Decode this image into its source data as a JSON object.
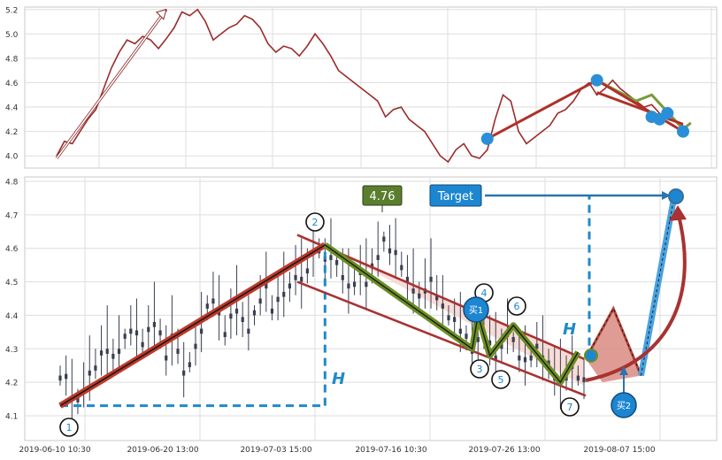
{
  "chart_data": [
    {
      "type": "line",
      "panel": "overview",
      "title": "",
      "xlabel": "",
      "ylabel": "",
      "ylim": [
        3.9,
        5.22
      ],
      "y_ticks": [
        "4.0",
        "4.2",
        "4.4",
        "4.6",
        "4.8",
        "5.0",
        "5.2"
      ],
      "grid": true,
      "line_color": "#9b2c2c",
      "series": [
        {
          "values": [
            4.0,
            4.12,
            4.1,
            4.2,
            4.3,
            4.38,
            4.55,
            4.72,
            4.85,
            4.95,
            4.92,
            4.98,
            4.95,
            4.88,
            4.96,
            5.05,
            5.18,
            5.15,
            5.2,
            5.1,
            4.95,
            5.0,
            5.05,
            5.08,
            5.15,
            5.12,
            5.05,
            4.92,
            4.85,
            4.9,
            4.88,
            4.82,
            4.9,
            5.0,
            4.92,
            4.82,
            4.7,
            4.65,
            4.6,
            4.55,
            4.5,
            4.45,
            4.32,
            4.38,
            4.4,
            4.3,
            4.25,
            4.2,
            4.1,
            4.0,
            3.95,
            4.05,
            4.1,
            4.0,
            3.98,
            4.05,
            4.3,
            4.5,
            4.45,
            4.2,
            4.1,
            4.15,
            4.2,
            4.25,
            4.35,
            4.38,
            4.45,
            4.55,
            4.6,
            4.5,
            4.55,
            4.62,
            4.55,
            4.5,
            4.45,
            4.4,
            4.42,
            4.35,
            4.3,
            4.28,
            4.25
          ]
        }
      ],
      "annotations": {
        "trend_lines": [
          {
            "from": [
              55,
              4.14
            ],
            "to": [
              69,
              4.62
            ]
          },
          {
            "from": [
              69,
              4.62
            ],
            "to": [
              80,
              4.2
            ]
          },
          {
            "from": [
              69,
              4.52
            ],
            "to": [
              80,
              4.26
            ]
          }
        ],
        "markers": [
          [
            55,
            4.14
          ],
          [
            69,
            4.62
          ],
          [
            76,
            4.32
          ],
          [
            77,
            4.3
          ],
          [
            78,
            4.35
          ],
          [
            80,
            4.2
          ]
        ],
        "arrow": {
          "from": [
            0,
            3.98
          ],
          "to": [
            14,
            5.2
          ]
        }
      }
    },
    {
      "type": "candlestick",
      "panel": "main",
      "title": "",
      "xlabel": "",
      "ylabel": "",
      "ylim": [
        4.07,
        4.82
      ],
      "y_ticks": [
        "4.1",
        "4.2",
        "4.3",
        "4.4",
        "4.5",
        "4.6",
        "4.7",
        "4.8"
      ],
      "x_ticks": [
        "2019-06-10 10:30",
        "2019-06-20 13:00",
        "2019-07-03 15:00",
        "2019-07-16 10:30",
        "2019-07-26 13:00",
        "2019-08-07 15:00"
      ],
      "grid": true,
      "candle_color": "#3a3f52",
      "series": [
        {
          "name": "",
          "values": [
            4.22,
            4.21,
            4.16,
            4.14,
            4.18,
            4.22,
            4.25,
            4.28,
            4.3,
            4.27,
            4.3,
            4.33,
            4.36,
            4.34,
            4.32,
            4.35,
            4.38,
            4.34,
            4.28,
            4.33,
            4.3,
            4.22,
            4.26,
            4.3,
            4.36,
            4.42,
            4.45,
            4.4,
            4.35,
            4.39,
            4.42,
            4.38,
            4.36,
            4.4,
            4.45,
            4.48,
            4.42,
            4.44,
            4.47,
            4.48,
            4.52,
            4.5,
            4.54,
            4.58,
            4.6,
            4.56,
            4.58,
            4.55,
            4.52,
            4.48,
            4.5,
            4.52,
            4.5,
            4.54,
            4.58,
            4.62,
            4.6,
            4.58,
            4.55,
            4.5,
            4.48,
            4.45,
            4.48,
            4.5,
            4.46,
            4.42,
            4.4,
            4.38,
            4.36,
            4.33,
            4.3,
            4.32,
            4.34,
            4.31,
            4.28,
            4.3,
            4.35,
            4.32,
            4.28,
            4.26,
            4.28,
            4.3,
            4.28,
            4.25,
            4.22,
            4.2,
            4.22,
            4.24,
            4.22,
            4.2
          ]
        }
      ],
      "pattern": {
        "up_leg": {
          "from": [
            0,
            4.13
          ],
          "to": [
            45,
            4.61
          ]
        },
        "down_leg": {
          "from": [
            45,
            4.61
          ],
          "to": [
            89,
            4.19
          ]
        },
        "channel_upper": {
          "from": [
            43,
            4.64
          ],
          "to": [
            89,
            4.27
          ]
        },
        "channel_lower": {
          "from": [
            43,
            4.5
          ],
          "to": [
            94,
            4.16
          ]
        },
        "zigzag": [
          [
            45,
            4.61
          ],
          [
            70,
            4.3
          ],
          [
            71,
            4.4
          ],
          [
            73,
            4.28
          ],
          [
            77,
            4.37
          ],
          [
            85,
            4.2
          ],
          [
            88,
            4.29
          ]
        ],
        "forecast": [
          [
            88,
            4.27
          ],
          [
            93,
            4.42
          ],
          [
            98,
            4.22
          ],
          [
            104,
            4.76
          ]
        ],
        "height_h": {
          "base": 4.13,
          "top": 4.61
        }
      },
      "labels": {
        "price_box": "4.76",
        "target_box": "Target",
        "h_left": "H",
        "h_right": "H",
        "points": [
          "1",
          "2",
          "3",
          "4",
          "5",
          "6",
          "7"
        ],
        "buy1": "买1",
        "buy2": "买2"
      },
      "colors": {
        "trend_red": "#c0392b",
        "zigzag_green": "#6b8e23",
        "dashed_blue": "#1f8ac8",
        "box_green": "#5a7e2e",
        "box_blue": "#1c86d1",
        "channel_fill": "#f5cdc6",
        "forecast_fill": "#d98b83",
        "arrow_red": "#a83232",
        "target_line_blue": "#4aa3e0"
      }
    }
  ]
}
